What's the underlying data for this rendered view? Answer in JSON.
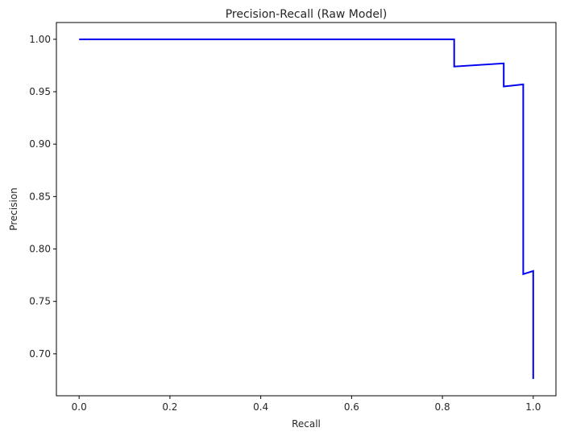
{
  "chart_data": {
    "type": "line",
    "title": "Precision-Recall (Raw Model)",
    "xlabel": "Recall",
    "ylabel": "Precision",
    "xlim": [
      -0.05,
      1.05
    ],
    "ylim": [
      0.66,
      1.016
    ],
    "xticks": [
      0.0,
      0.2,
      0.4,
      0.6,
      0.8,
      1.0
    ],
    "xtick_labels": [
      "0.0",
      "0.2",
      "0.4",
      "0.6",
      "0.8",
      "1.0"
    ],
    "yticks": [
      0.7,
      0.75,
      0.8,
      0.85,
      0.9,
      0.95,
      1.0
    ],
    "ytick_labels": [
      "0.70",
      "0.75",
      "0.80",
      "0.85",
      "0.90",
      "0.95",
      "1.00"
    ],
    "grid": false,
    "series": [
      {
        "color": "#0000ee",
        "x": [
          0.0,
          0.826,
          0.826,
          0.935,
          0.935,
          0.978,
          0.978,
          1.0,
          1.0
        ],
        "y": [
          1.0,
          1.0,
          0.974,
          0.977,
          0.955,
          0.957,
          0.776,
          0.779,
          0.676
        ]
      }
    ]
  }
}
